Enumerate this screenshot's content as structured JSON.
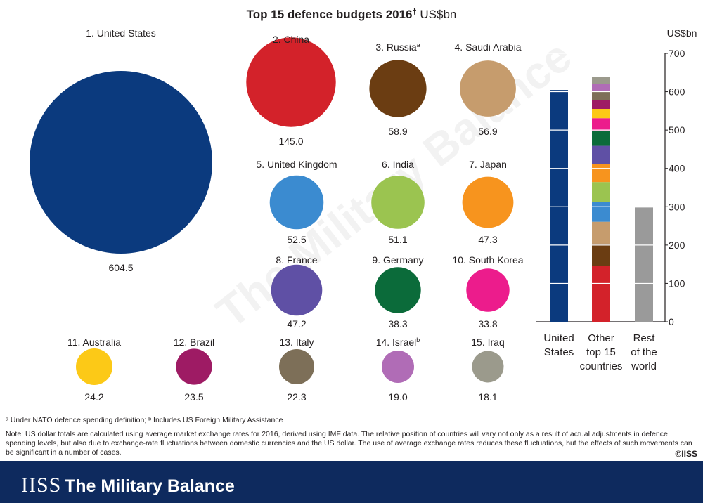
{
  "chart_data": [
    {
      "type": "bubble",
      "title": "Top 15 defence budgets 2016",
      "title_mark": "†",
      "unit": "US$bn",
      "countries": [
        {
          "label": "1. United States",
          "value": 604.5,
          "value_label": "604.5",
          "color": "#0b3a7e",
          "sup": ""
        },
        {
          "label": "2. China",
          "value": 145.0,
          "value_label": "145.0",
          "color": "#d3222a",
          "sup": ""
        },
        {
          "label": "3. Russia",
          "value": 58.9,
          "value_label": "58.9",
          "color": "#6b3d12",
          "sup": "a"
        },
        {
          "label": "4. Saudi Arabia",
          "value": 56.9,
          "value_label": "56.9",
          "color": "#c69c6d",
          "sup": ""
        },
        {
          "label": "5. United Kingdom",
          "value": 52.5,
          "value_label": "52.5",
          "color": "#3b8bd0",
          "sup": ""
        },
        {
          "label": "6. India",
          "value": 51.1,
          "value_label": "51.1",
          "color": "#9bc450",
          "sup": ""
        },
        {
          "label": "7. Japan",
          "value": 47.3,
          "value_label": "47.3",
          "color": "#f7941e",
          "sup": ""
        },
        {
          "label": "8. France",
          "value": 47.2,
          "value_label": "47.2",
          "color": "#5f50a5",
          "sup": ""
        },
        {
          "label": "9. Germany",
          "value": 38.3,
          "value_label": "38.3",
          "color": "#0b6b3a",
          "sup": ""
        },
        {
          "label": "10. South Korea",
          "value": 33.8,
          "value_label": "33.8",
          "color": "#ec1c8c",
          "sup": ""
        },
        {
          "label": "11. Australia",
          "value": 24.2,
          "value_label": "24.2",
          "color": "#fcc917",
          "sup": ""
        },
        {
          "label": "12. Brazil",
          "value": 23.5,
          "value_label": "23.5",
          "color": "#9e1b64",
          "sup": ""
        },
        {
          "label": "13. Italy",
          "value": 22.3,
          "value_label": "22.3",
          "color": "#7d6f58",
          "sup": ""
        },
        {
          "label": "14. Israel",
          "value": 19.0,
          "value_label": "19.0",
          "color": "#b06cb6",
          "sup": "b"
        },
        {
          "label": "15. Iraq",
          "value": 18.1,
          "value_label": "18.1",
          "color": "#9b9a8c",
          "sup": ""
        }
      ]
    },
    {
      "type": "bar",
      "ylabel": "US$bn",
      "ylim": [
        0,
        700
      ],
      "yticks": [
        0,
        100,
        200,
        300,
        400,
        500,
        600,
        700
      ],
      "bars": [
        {
          "label": [
            "United",
            "States"
          ],
          "value": 604.5,
          "stacked": false,
          "color": "#0b3a7e"
        },
        {
          "label": [
            "Other",
            "top 15",
            "countries"
          ],
          "value": 637.6,
          "stacked": true
        },
        {
          "label": [
            "Rest",
            "of the",
            "world"
          ],
          "value": 298,
          "stacked": false,
          "color": "#9a9a9a"
        }
      ],
      "grid": true
    }
  ],
  "watermark": "The Military Balance",
  "footnote_ab": "ᵃ Under NATO defence spending definition; ᵇ Includes US Foreign Military Assistance",
  "note": "Note: US dollar totals are calculated using average market exchange rates for 2016, derived using IMF data. The relative position of countries will vary not only as a result of actual adjustments in defence spending levels, but also due to exchange-rate fluctuations between domestic currencies and the US dollar. The use of average exchange rates reduces these fluctuations, but the effects of such movements can be significant in a number of cases.",
  "copyright": "©IISS",
  "brand": {
    "logo": "IISS",
    "name": "The Military Balance"
  }
}
